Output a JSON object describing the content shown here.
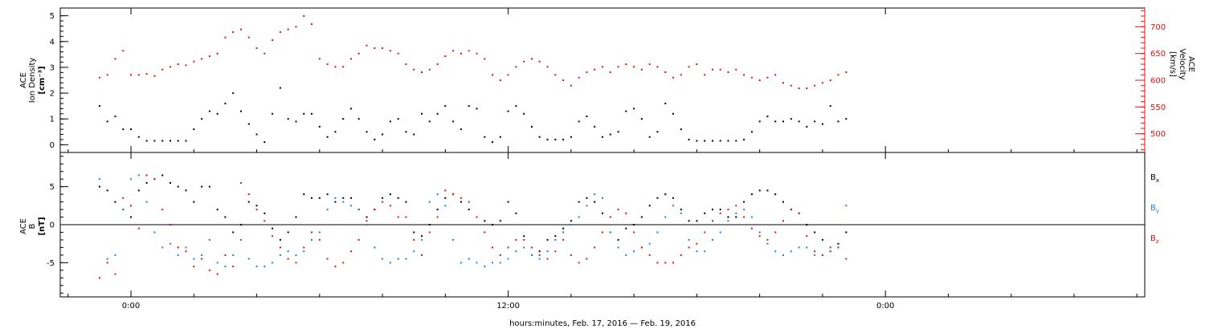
{
  "chart_data": [
    {
      "type": "scatter",
      "panel": "top",
      "ylabel_lines": [
        "ACE",
        "Ion Density",
        "[cm⁻³]"
      ],
      "ylabel_right_lines": [
        "ACE",
        "Velocity",
        "[km/s]"
      ],
      "ylim": [
        -0.3,
        5.3
      ],
      "ylim_right": [
        465,
        735
      ],
      "yticks": [
        "0",
        "1",
        "2",
        "3",
        "4",
        "5"
      ],
      "yticks_right": [
        "500",
        "550",
        "600",
        "650",
        "700"
      ],
      "grid": false,
      "series": [
        {
          "axis": "left",
          "color": "#000000",
          "x": [
            -2,
            -1.5,
            -1,
            -0.5,
            0,
            0.5,
            1,
            1.5,
            2,
            2.5,
            3,
            3.5,
            4,
            4.5,
            5,
            5.5,
            6,
            6.5,
            7,
            7.5,
            8,
            8.5,
            9,
            9.5,
            10,
            10.5,
            11,
            11.5,
            12,
            12.5,
            13,
            13.5,
            14,
            14.5,
            15,
            15.5,
            16,
            16.5,
            17,
            17.5,
            18,
            18.5,
            19,
            19.5,
            20,
            20.5,
            21,
            21.5,
            22,
            22.5,
            23,
            23.5,
            24,
            24.5,
            25,
            25.5,
            26,
            26.5,
            27,
            27.5,
            28,
            28.5,
            29,
            29.5,
            30,
            30.5,
            31,
            31.5,
            32,
            32.5,
            33,
            33.5,
            34,
            34.5,
            35,
            35.5,
            36,
            36.5,
            37,
            37.5,
            38,
            38.5,
            39,
            39.5,
            40,
            40.5,
            41,
            41.5,
            42,
            42.5,
            43,
            43.5,
            44,
            44.5,
            45,
            45.5
          ],
          "values": [
            1.5,
            0.9,
            1.1,
            0.6,
            0.6,
            0.3,
            0.15,
            0.15,
            0.15,
            0.15,
            0.15,
            0.15,
            0.6,
            1.0,
            1.3,
            1.2,
            1.6,
            2.0,
            1.3,
            0.8,
            0.4,
            0.1,
            1.2,
            2.2,
            1.0,
            0.9,
            1.2,
            1.2,
            0.7,
            0.3,
            0.5,
            1.0,
            1.4,
            1.0,
            0.5,
            0.2,
            0.4,
            0.9,
            1.0,
            0.5,
            0.4,
            1.2,
            0.9,
            1.2,
            1.5,
            0.9,
            0.6,
            1.5,
            1.4,
            0.3,
            0.1,
            0.3,
            1.3,
            1.5,
            1.2,
            0.7,
            0.3,
            0.2,
            0.2,
            0.2,
            0.3,
            0.9,
            1.1,
            0.7,
            0.3,
            0.4,
            0.5,
            1.3,
            1.4,
            1.0,
            0.3,
            0.5,
            1.6,
            1.2,
            0.6,
            0.2,
            0.15,
            0.15,
            0.15,
            0.15,
            0.15,
            0.15,
            0.2,
            0.5,
            0.9,
            1.1,
            0.9,
            0.9,
            1.0,
            0.9,
            0.7,
            0.9,
            0.8,
            1.5,
            0.9,
            1.0
          ]
        },
        {
          "axis": "right",
          "color": "#e01010",
          "x": [
            -2,
            -1.5,
            -1,
            -0.5,
            0,
            0.5,
            1,
            1.5,
            2,
            2.5,
            3,
            3.5,
            4,
            4.5,
            5,
            5.5,
            6,
            6.5,
            7,
            7.5,
            8,
            8.5,
            9,
            9.5,
            10,
            10.5,
            11,
            11.5,
            12,
            12.5,
            13,
            13.5,
            14,
            14.5,
            15,
            15.5,
            16,
            16.5,
            17,
            17.5,
            18,
            18.5,
            19,
            19.5,
            20,
            20.5,
            21,
            21.5,
            22,
            22.5,
            23,
            23.5,
            24,
            24.5,
            25,
            25.5,
            26,
            26.5,
            27,
            27.5,
            28,
            28.5,
            29,
            29.5,
            30,
            30.5,
            31,
            31.5,
            32,
            32.5,
            33,
            33.5,
            34,
            34.5,
            35,
            35.5,
            36,
            36.5,
            37,
            37.5,
            38,
            38.5,
            39,
            39.5,
            40,
            40.5,
            41,
            41.5,
            42,
            42.5,
            43,
            43.5,
            44,
            44.5,
            45,
            45.5
          ],
          "values": [
            605,
            610,
            640,
            655,
            610,
            610,
            612,
            608,
            620,
            625,
            630,
            628,
            635,
            640,
            645,
            650,
            680,
            690,
            695,
            680,
            660,
            650,
            675,
            690,
            695,
            700,
            720,
            705,
            640,
            630,
            625,
            625,
            640,
            650,
            665,
            660,
            660,
            655,
            650,
            630,
            620,
            615,
            620,
            630,
            645,
            655,
            650,
            655,
            650,
            640,
            610,
            600,
            610,
            625,
            635,
            640,
            635,
            625,
            610,
            600,
            590,
            605,
            615,
            620,
            625,
            615,
            625,
            630,
            625,
            620,
            630,
            625,
            615,
            605,
            610,
            625,
            630,
            610,
            620,
            620,
            615,
            620,
            610,
            605,
            600,
            605,
            610,
            595,
            590,
            585,
            585,
            590,
            595,
            600,
            610,
            615
          ]
        }
      ]
    },
    {
      "type": "scatter",
      "panel": "bottom",
      "ylabel_lines": [
        "ACE",
        "B",
        "[nT]"
      ],
      "ylim": [
        -9.5,
        9.5
      ],
      "yticks": [
        "-5",
        "0",
        "5"
      ],
      "grid": false,
      "legend_position": "right",
      "series": [
        {
          "name": "Bx",
          "name_main": "B",
          "name_sub": "x",
          "color": "#000000",
          "x": [
            -2,
            -1.5,
            -1,
            -0.5,
            0,
            0.5,
            1,
            1.5,
            2,
            2.5,
            3,
            3.5,
            4,
            4.5,
            5,
            5.5,
            6,
            6.5,
            7,
            7.5,
            8,
            8.5,
            9,
            9.5,
            10,
            10.5,
            11,
            11.5,
            12,
            12.5,
            13,
            13.5,
            14,
            14.5,
            15,
            15.5,
            16,
            16.5,
            17,
            17.5,
            18,
            18.5,
            19,
            19.5,
            20,
            20.5,
            21,
            21.5,
            22,
            22.5,
            23,
            23.5,
            24,
            24.5,
            25,
            25.5,
            26,
            26.5,
            27,
            27.5,
            28,
            28.5,
            29,
            29.5,
            30,
            30.5,
            31,
            31.5,
            32,
            32.5,
            33,
            33.5,
            34,
            34.5,
            35,
            35.5,
            36,
            36.5,
            37,
            37.5,
            38,
            38.5,
            39,
            39.5,
            40,
            40.5,
            41,
            41.5,
            42,
            42.5,
            43,
            43.5,
            44,
            44.5,
            45,
            45.5
          ],
          "values": [
            5.0,
            4.5,
            3.0,
            2.0,
            1.0,
            4.5,
            5.5,
            6.0,
            6.5,
            5.5,
            5.0,
            4.5,
            3.0,
            5.0,
            5.0,
            2.0,
            1.0,
            -1.0,
            0.0,
            3.0,
            2.5,
            1.5,
            -0.5,
            -2.0,
            -1.0,
            1.0,
            4.0,
            3.5,
            3.5,
            4.0,
            3.0,
            3.5,
            3.5,
            2.0,
            1.0,
            2.0,
            3.5,
            4.0,
            3.5,
            3.0,
            -1.0,
            -1.5,
            0.0,
            2.0,
            3.5,
            4.0,
            3.0,
            2.0,
            1.0,
            0.5,
            0.0,
            0.5,
            3.0,
            1.5,
            -1.5,
            -4.0,
            -3.5,
            -2.0,
            -1.5,
            -0.5,
            0.5,
            3.0,
            3.5,
            3.0,
            1.5,
            -1.0,
            -2.0,
            -0.5,
            0.0,
            1.0,
            2.5,
            3.5,
            4.0,
            3.5,
            2.0,
            0.5,
            0.5,
            1.5,
            2.0,
            2.0,
            1.0,
            1.0,
            3.0,
            4.0,
            4.5,
            4.5,
            4.0,
            3.0,
            2.0,
            1.5,
            0.0,
            -1.0,
            -2.0,
            -3.5,
            -2.5,
            -1.0
          ]
        },
        {
          "name": "By",
          "name_main": "B",
          "name_sub": "y",
          "color": "#1f7fd6",
          "x": [
            -2,
            -1.5,
            -1,
            -0.5,
            0,
            0.5,
            1,
            1.5,
            2,
            2.5,
            3,
            3.5,
            4,
            4.5,
            5,
            5.5,
            6,
            6.5,
            7,
            7.5,
            8,
            8.5,
            9,
            9.5,
            10,
            10.5,
            11,
            11.5,
            12,
            12.5,
            13,
            13.5,
            14,
            14.5,
            15,
            15.5,
            16,
            16.5,
            17,
            17.5,
            18,
            18.5,
            19,
            19.5,
            20,
            20.5,
            21,
            21.5,
            22,
            22.5,
            23,
            23.5,
            24,
            24.5,
            25,
            25.5,
            26,
            26.5,
            27,
            27.5,
            28,
            28.5,
            29,
            29.5,
            30,
            30.5,
            31,
            31.5,
            32,
            32.5,
            33,
            33.5,
            34,
            34.5,
            35,
            35.5,
            36,
            36.5,
            37,
            37.5,
            38,
            38.5,
            39,
            39.5,
            40,
            40.5,
            41,
            41.5,
            42,
            42.5,
            43,
            43.5,
            44,
            44.5,
            45,
            45.5
          ],
          "values": [
            6.0,
            -4.5,
            -4.0,
            2.0,
            6.0,
            6.5,
            3.0,
            -1.0,
            -3.0,
            -2.5,
            -4.0,
            -3.0,
            -4.5,
            -4.0,
            -2.0,
            -5.0,
            -5.5,
            -4.0,
            -2.0,
            -4.5,
            -5.5,
            -5.5,
            -5.0,
            -4.0,
            -3.5,
            -4.0,
            -3.5,
            -2.0,
            -1.0,
            2.0,
            3.5,
            3.0,
            2.5,
            2.0,
            0.0,
            -3.0,
            -4.5,
            -5.0,
            -4.5,
            -4.5,
            -3.5,
            -2.0,
            3.0,
            4.0,
            2.5,
            -2.0,
            -5.0,
            -4.5,
            -5.0,
            -5.5,
            -5.0,
            -5.0,
            -4.5,
            -3.5,
            -3.0,
            -4.0,
            -4.5,
            -3.5,
            -2.0,
            -1.0,
            0.0,
            1.0,
            2.5,
            4.0,
            3.5,
            -1.0,
            -3.0,
            -4.0,
            -3.5,
            -3.0,
            -2.5,
            -1.0,
            1.0,
            2.5,
            1.5,
            -2.0,
            -3.5,
            -3.5,
            -2.0,
            -1.0,
            0.5,
            1.5,
            2.0,
            1.0,
            -1.0,
            -2.5,
            -3.5,
            -4.0,
            -3.5,
            -3.0,
            -3.0,
            -4.0,
            -4.0,
            -3.5,
            -3.0,
            2.5
          ]
        },
        {
          "name": "Bz",
          "name_main": "B",
          "name_sub": "z",
          "color": "#e01010",
          "x": [
            -2,
            -1.5,
            -1,
            -0.5,
            0,
            0.5,
            1,
            1.5,
            2,
            2.5,
            3,
            3.5,
            4,
            4.5,
            5,
            5.5,
            6,
            6.5,
            7,
            7.5,
            8,
            8.5,
            9,
            9.5,
            10,
            10.5,
            11,
            11.5,
            12,
            12.5,
            13,
            13.5,
            14,
            14.5,
            15,
            15.5,
            16,
            16.5,
            17,
            17.5,
            18,
            18.5,
            19,
            19.5,
            20,
            20.5,
            21,
            21.5,
            22,
            22.5,
            23,
            23.5,
            24,
            24.5,
            25,
            25.5,
            26,
            26.5,
            27,
            27.5,
            28,
            28.5,
            29,
            29.5,
            30,
            30.5,
            31,
            31.5,
            32,
            32.5,
            33,
            33.5,
            34,
            34.5,
            35,
            35.5,
            36,
            36.5,
            37,
            37.5,
            38,
            38.5,
            39,
            39.5,
            40,
            40.5,
            41,
            41.5,
            42,
            42.5,
            43,
            43.5,
            44,
            44.5,
            45,
            45.5
          ],
          "values": [
            -7.0,
            -5.0,
            -6.5,
            3.5,
            2.5,
            -0.5,
            6.5,
            6.0,
            2.0,
            0.0,
            -3.0,
            -3.5,
            -5.5,
            -4.5,
            -6.0,
            -6.5,
            -4.0,
            -5.5,
            5.5,
            4.0,
            2.0,
            0.5,
            -1.5,
            -3.0,
            -4.5,
            -5.0,
            -3.0,
            -1.0,
            -2.0,
            -4.5,
            -5.5,
            -5.0,
            -3.5,
            -2.0,
            0.5,
            2.0,
            3.0,
            2.5,
            1.0,
            1.0,
            -2.0,
            -4.0,
            -1.0,
            1.0,
            4.5,
            4.0,
            3.5,
            3.0,
            1.0,
            -1.0,
            -3.0,
            -4.0,
            -3.0,
            -2.0,
            -2.0,
            -3.0,
            -4.0,
            -4.5,
            -3.5,
            -2.0,
            -4.0,
            -5.0,
            -4.5,
            -3.0,
            -1.0,
            1.0,
            2.0,
            1.5,
            -1.0,
            -3.0,
            -4.0,
            -5.0,
            -5.0,
            -5.0,
            -4.0,
            -3.0,
            -2.5,
            -1.0,
            0.5,
            1.5,
            2.0,
            2.5,
            1.0,
            -0.5,
            -1.5,
            -2.0,
            -1.0,
            0.5,
            2.0,
            1.5,
            -1.5,
            -3.5,
            -4.0,
            -3.0,
            -3.0,
            -4.5
          ]
        }
      ]
    }
  ],
  "x_axis": {
    "xlim": [
      -4.5,
      64.5
    ],
    "xticks": [
      {
        "x": 0,
        "label": "0:00"
      },
      {
        "x": 24,
        "label": "12:00"
      },
      {
        "x": 48,
        "label": "0:00"
      }
    ],
    "minor_step": 4,
    "xlabel": "hours:minutes, Feb. 17, 2016 — Feb. 19, 2016"
  }
}
